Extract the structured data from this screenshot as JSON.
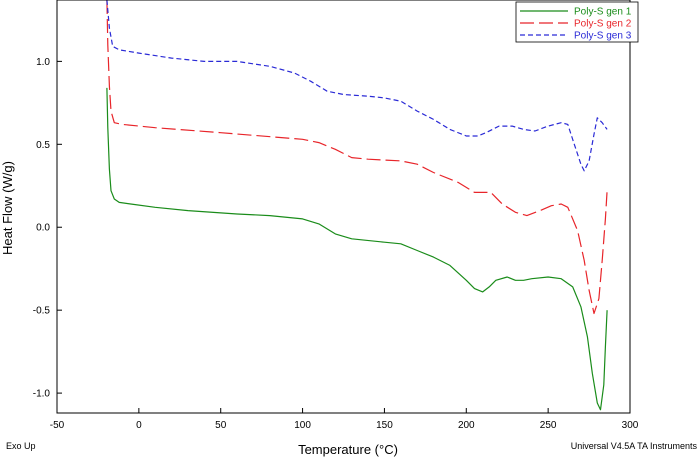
{
  "chart_data": {
    "type": "line",
    "xlabel": "Temperature (°C)",
    "ylabel": "Heat Flow (W/g)",
    "xlim": [
      -50,
      300
    ],
    "ylim": [
      -1.12,
      1.37
    ],
    "xticks": [
      -50,
      0,
      50,
      100,
      150,
      200,
      250,
      300
    ],
    "yticks": [
      -1.0,
      -0.5,
      0.0,
      0.5,
      1.0
    ],
    "xtick_labels": [
      "-50",
      "0",
      "50",
      "100",
      "150",
      "200",
      "250",
      "300"
    ],
    "ytick_labels": [
      "-1.0",
      "-0.5",
      "0.0",
      "0.5",
      "1.0"
    ],
    "grid": false,
    "legend_position": "top-right",
    "corner_left": "Exo Up",
    "corner_right": "Universal V4.5A TA Instruments",
    "series": [
      {
        "name": "Poly-S gen 1",
        "color": "#1a8c1a",
        "dash": "solid",
        "points": [
          [
            -19.5,
            0.84
          ],
          [
            -19,
            0.6
          ],
          [
            -18,
            0.35
          ],
          [
            -17,
            0.22
          ],
          [
            -15,
            0.17
          ],
          [
            -12,
            0.15
          ],
          [
            -5,
            0.14
          ],
          [
            10,
            0.12
          ],
          [
            30,
            0.1
          ],
          [
            60,
            0.08
          ],
          [
            80,
            0.07
          ],
          [
            100,
            0.05
          ],
          [
            110,
            0.02
          ],
          [
            120,
            -0.04
          ],
          [
            130,
            -0.07
          ],
          [
            150,
            -0.09
          ],
          [
            160,
            -0.1
          ],
          [
            170,
            -0.14
          ],
          [
            180,
            -0.18
          ],
          [
            190,
            -0.23
          ],
          [
            200,
            -0.32
          ],
          [
            205,
            -0.37
          ],
          [
            210,
            -0.39
          ],
          [
            214,
            -0.36
          ],
          [
            218,
            -0.32
          ],
          [
            225,
            -0.3
          ],
          [
            230,
            -0.32
          ],
          [
            235,
            -0.32
          ],
          [
            240,
            -0.31
          ],
          [
            250,
            -0.3
          ],
          [
            258,
            -0.31
          ],
          [
            265,
            -0.36
          ],
          [
            270,
            -0.48
          ],
          [
            274,
            -0.66
          ],
          [
            277,
            -0.88
          ],
          [
            280,
            -1.06
          ],
          [
            282,
            -1.1
          ],
          [
            284,
            -0.95
          ],
          [
            285,
            -0.72
          ],
          [
            286,
            -0.5
          ]
        ]
      },
      {
        "name": "Poly-S gen 2",
        "color": "#e8252a",
        "dash": "long",
        "points": [
          [
            -19.5,
            1.37
          ],
          [
            -19,
            1.1
          ],
          [
            -18,
            0.85
          ],
          [
            -17,
            0.7
          ],
          [
            -15,
            0.63
          ],
          [
            -10,
            0.62
          ],
          [
            10,
            0.6
          ],
          [
            50,
            0.57
          ],
          [
            100,
            0.53
          ],
          [
            110,
            0.51
          ],
          [
            120,
            0.47
          ],
          [
            130,
            0.42
          ],
          [
            140,
            0.41
          ],
          [
            160,
            0.4
          ],
          [
            170,
            0.38
          ],
          [
            180,
            0.33
          ],
          [
            195,
            0.27
          ],
          [
            205,
            0.21
          ],
          [
            215,
            0.21
          ],
          [
            222,
            0.14
          ],
          [
            230,
            0.09
          ],
          [
            237,
            0.07
          ],
          [
            245,
            0.1
          ],
          [
            252,
            0.13
          ],
          [
            258,
            0.14
          ],
          [
            262,
            0.12
          ],
          [
            268,
            -0.02
          ],
          [
            272,
            -0.2
          ],
          [
            275,
            -0.38
          ],
          [
            278,
            -0.52
          ],
          [
            281,
            -0.43
          ],
          [
            283,
            -0.2
          ],
          [
            285,
            0.05
          ],
          [
            286,
            0.22
          ]
        ]
      },
      {
        "name": "Poly-S gen 3",
        "color": "#2a2ad6",
        "dash": "short",
        "points": [
          [
            -19.5,
            1.37
          ],
          [
            -18,
            1.2
          ],
          [
            -16,
            1.09
          ],
          [
            -12,
            1.07
          ],
          [
            0,
            1.05
          ],
          [
            20,
            1.02
          ],
          [
            40,
            1.0
          ],
          [
            60,
            1.0
          ],
          [
            80,
            0.97
          ],
          [
            95,
            0.93
          ],
          [
            105,
            0.88
          ],
          [
            115,
            0.82
          ],
          [
            125,
            0.8
          ],
          [
            140,
            0.79
          ],
          [
            150,
            0.78
          ],
          [
            160,
            0.76
          ],
          [
            170,
            0.7
          ],
          [
            180,
            0.65
          ],
          [
            190,
            0.59
          ],
          [
            200,
            0.55
          ],
          [
            207,
            0.55
          ],
          [
            212,
            0.57
          ],
          [
            220,
            0.61
          ],
          [
            228,
            0.61
          ],
          [
            235,
            0.59
          ],
          [
            242,
            0.58
          ],
          [
            250,
            0.61
          ],
          [
            258,
            0.63
          ],
          [
            262,
            0.62
          ],
          [
            266,
            0.5
          ],
          [
            270,
            0.38
          ],
          [
            272,
            0.34
          ],
          [
            275,
            0.4
          ],
          [
            278,
            0.56
          ],
          [
            280,
            0.66
          ],
          [
            283,
            0.63
          ],
          [
            286,
            0.59
          ]
        ]
      }
    ]
  }
}
